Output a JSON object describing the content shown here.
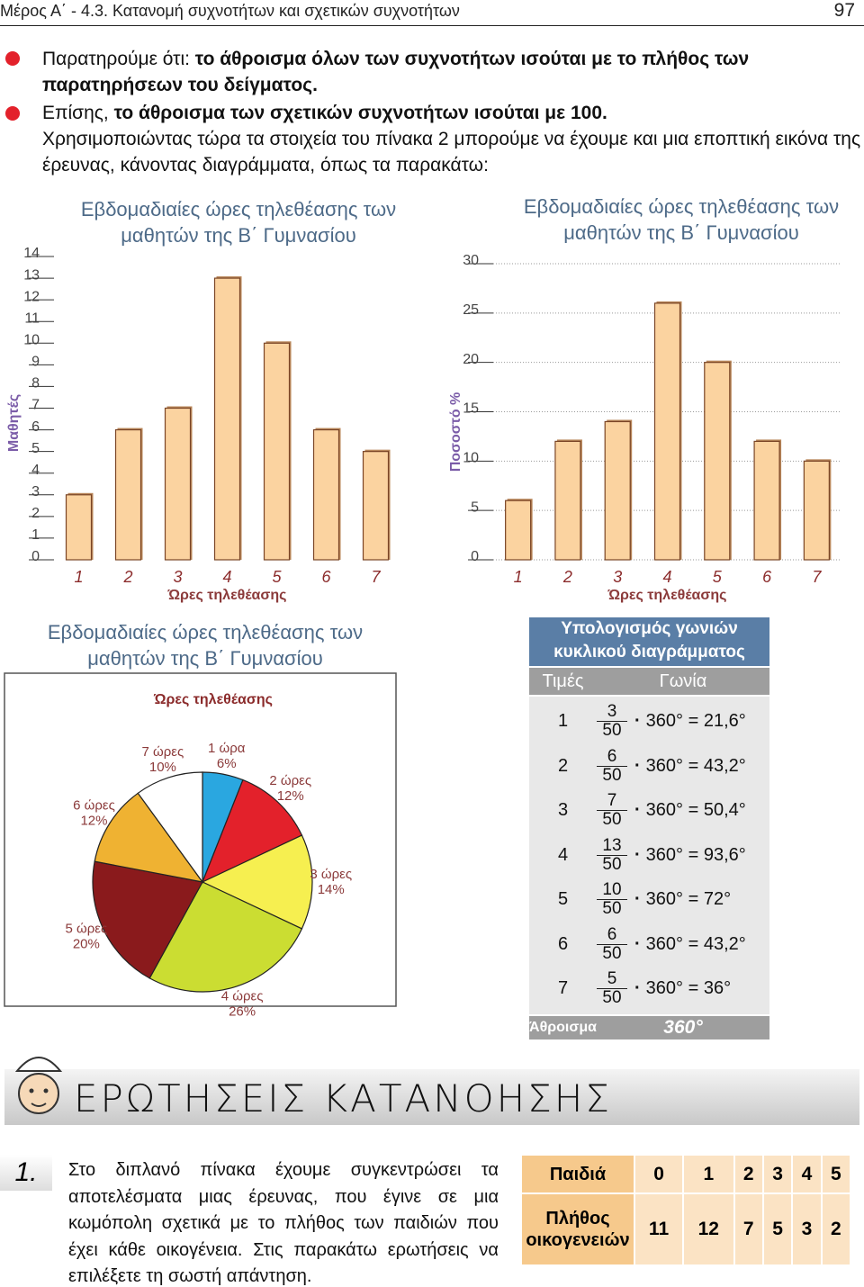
{
  "header": {
    "section": "Μέρος Α΄ - 4.3. Κατανομή συχνοτήτων και σχετικών συχνοτήτων",
    "page": "97"
  },
  "notes": [
    {
      "lead": "Παρατηρούμε ότι: ",
      "bold": "το άθροισμα όλων των συχνοτήτων ισούται με το πλήθος των παρατηρήσεων του δείγματος."
    },
    {
      "lead": "Επίσης, ",
      "bold": "το άθροισμα των σχετικών συχνοτήτων ισούται με 100.",
      "text": "Χρησιμοποιώντας τώρα τα στοιχεία του πίνακα 2 μπορούμε να έχουμε και μια εποπτική εικόνα της έρευνας, κάνοντας διαγράμματα, όπως τα παρακάτω:"
    }
  ],
  "chart_data": [
    {
      "type": "bar",
      "title": "Εβδομαδιαίες ώρες τηλεθέασης των μαθητών της Β΄ Γυμνασίου",
      "x_label": "Ώρες τηλεθέασης",
      "y_label": "Μαθητές",
      "categories": [
        "1",
        "2",
        "3",
        "4",
        "5",
        "6",
        "7"
      ],
      "values": [
        3,
        6,
        7,
        13,
        10,
        6,
        5
      ],
      "color": "#fbd3a0",
      "ylim": [
        0,
        14
      ],
      "yticks": [
        0,
        1,
        2,
        3,
        4,
        5,
        6,
        7,
        8,
        9,
        10,
        11,
        12,
        13,
        14
      ],
      "grid": false
    },
    {
      "type": "bar",
      "title": "Εβδομαδιαίες ώρες τηλεθέασης των μαθητών της Β΄ Γυμνασίου",
      "x_label": "Ώρες τηλεθέασης",
      "y_label": "Ποσοστό %",
      "categories": [
        "1",
        "2",
        "3",
        "4",
        "5",
        "6",
        "7"
      ],
      "values": [
        6,
        12,
        14,
        26,
        20,
        12,
        10
      ],
      "color": "#fbd3a0",
      "ylim": [
        0,
        30
      ],
      "yticks": [
        0,
        5,
        10,
        15,
        20,
        25,
        30
      ],
      "grid": true
    },
    {
      "type": "pie",
      "title": "Εβδομαδιαίες ώρες τηλεθέασης των μαθητών της Β΄ Γυμνασίου",
      "subtitle": "Ώρες τηλεθέασης",
      "categories": [
        "1 ώρα",
        "2 ώρες",
        "3 ώρες",
        "4 ώρες",
        "5 ώρες",
        "6 ώρες",
        "7 ώρες"
      ],
      "values": [
        6,
        12,
        14,
        26,
        20,
        12,
        10
      ],
      "value_labels": [
        "6%",
        "12%",
        "14%",
        "26%",
        "20%",
        "12%",
        "10%"
      ],
      "colors": [
        "#2aa7e0",
        "#e3212b",
        "#f6ef50",
        "#cbdd32",
        "#8a1a1c",
        "#efb232",
        "#ffffff"
      ]
    }
  ],
  "angle_table": {
    "title": "Υπολογισμός γωνιών κυκλικού διαγράμματος",
    "headers": [
      "Τιμές",
      "Γωνία"
    ],
    "rows": [
      {
        "value": "1",
        "numerator": "3",
        "denominator": "50",
        "result": "360° = 21,6°"
      },
      {
        "value": "2",
        "numerator": "6",
        "denominator": "50",
        "result": "360° = 43,2°"
      },
      {
        "value": "3",
        "numerator": "7",
        "denominator": "50",
        "result": "360° = 50,4°"
      },
      {
        "value": "4",
        "numerator": "13",
        "denominator": "50",
        "result": "360° = 93,6°"
      },
      {
        "value": "5",
        "numerator": "10",
        "denominator": "50",
        "result": "360° = 72°"
      },
      {
        "value": "6",
        "numerator": "6",
        "denominator": "50",
        "result": "360° = 43,2°"
      },
      {
        "value": "7",
        "numerator": "5",
        "denominator": "50",
        "result": "360° = 36°"
      }
    ],
    "total_label": "Άθροισμα",
    "total": "360°"
  },
  "section_title": "ΕΡΩΤΗΣΕΙΣ ΚΑΤΑΝΟΗΣΗΣ",
  "question": {
    "number": "1.",
    "text": "Στο διπλανό πίνακα έχουμε συγκεντρώσει τα αποτελέσματα μιας έρευνας, που έγινε σε μια κωμόπολη σχετικά με το πλήθος των παιδιών που έχει κάθε οικογένεια. Στις παρακάτω ερωτήσεις να επιλέξετε τη σωστή απάντηση."
  },
  "families_table": {
    "rows": [
      {
        "label": "Παιδιά",
        "cells": [
          "0",
          "1",
          "2",
          "3",
          "4",
          "5"
        ]
      },
      {
        "label": "Πλήθος οικογενειών",
        "cells": [
          "11",
          "12",
          "7",
          "5",
          "3",
          "2"
        ]
      }
    ]
  }
}
